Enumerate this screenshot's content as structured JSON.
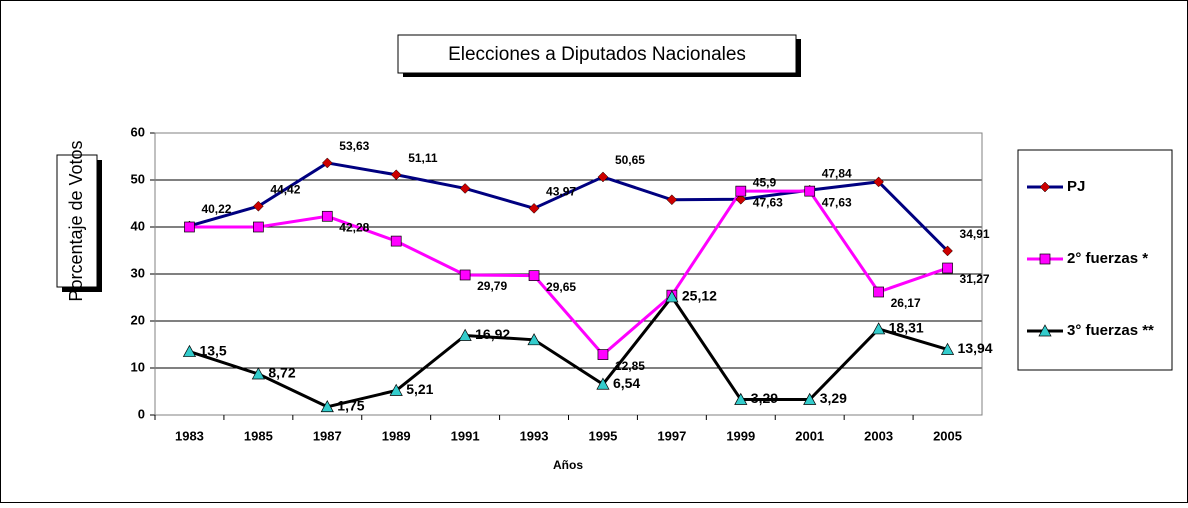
{
  "chart_data": {
    "type": "line",
    "title": "Elecciones a Diputados Nacionales",
    "y_label": "Porcentaje de Votos",
    "x_label": "Años",
    "categories": [
      "1983",
      "1985",
      "1987",
      "1989",
      "1991",
      "1993",
      "1995",
      "1997",
      "1999",
      "2001",
      "2003",
      "2005"
    ],
    "ylim": [
      0,
      60
    ],
    "yticks": [
      0,
      10,
      20,
      30,
      40,
      50,
      60
    ],
    "grid": true,
    "legend": "right",
    "series": [
      {
        "name": "PJ",
        "color": "#000080",
        "marker": "diamond",
        "marker_color": "#cc0000",
        "values": [
          40.22,
          44.42,
          53.63,
          51.11,
          48.2,
          43.97,
          50.65,
          45.8,
          45.9,
          47.84,
          49.6,
          34.91
        ],
        "value_labels": [
          "40,22",
          "44,42",
          "53,63",
          "51,11",
          null,
          "43,97",
          "50,65",
          null,
          "45,9",
          "47,84",
          null,
          "34,91"
        ]
      },
      {
        "name": "2° fuerzas *",
        "color": "#ff00ff",
        "marker": "square",
        "marker_color": "#ff00ff",
        "values": [
          40.0,
          40.0,
          42.28,
          37,
          29.79,
          29.65,
          12.85,
          25.5,
          47.63,
          47.63,
          26.17,
          31.27
        ],
        "value_labels": [
          null,
          null,
          "42,28",
          null,
          "29,79",
          "29,65",
          "12,85",
          null,
          "47,63",
          "47,63",
          "26,17",
          "31,27"
        ]
      },
      {
        "name": "3° fuerzas **",
        "color": "#000000",
        "marker": "triangle",
        "marker_color": "#33cccc",
        "values": [
          13.5,
          8.72,
          1.75,
          5.21,
          16.92,
          16.0,
          6.54,
          25.12,
          3.29,
          3.29,
          18.31,
          13.94
        ],
        "value_labels": [
          "13,5",
          "8,72",
          "1,75",
          "5,21",
          "16,92",
          null,
          "6,54",
          "25,12",
          "3,29",
          "3,29",
          "18,31",
          "13,94"
        ]
      }
    ]
  }
}
